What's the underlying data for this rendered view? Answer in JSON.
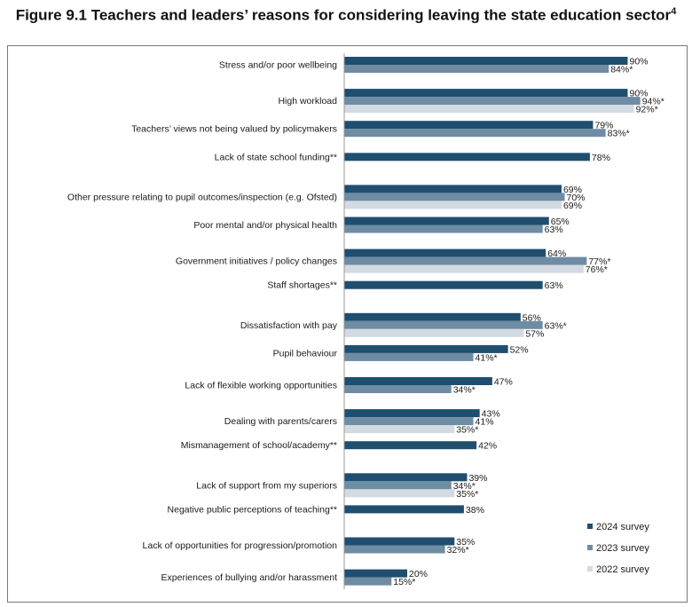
{
  "chart_data": {
    "type": "bar",
    "orientation": "horizontal",
    "title": "Figure 9.1 Teachers and leaders’ reasons for considering leaving the state education sector",
    "title_superscript": "4",
    "categories": [
      "Stress and/or poor wellbeing",
      "High workload",
      "Teachers’ views not being valued by policymakers",
      "Lack of state school funding**",
      "Other pressure relating to pupil outcomes/inspection (e.g.  Ofsted)",
      "Poor mental and/or physical health",
      "Government initiatives / policy changes",
      "Staff shortages**",
      "Dissatisfaction with pay",
      "Pupil behaviour",
      "Lack of flexible working opportunities",
      "Dealing with parents/carers",
      "Mismanagement of school/academy**",
      "Lack of support from my superiors",
      "Negative public perceptions of teaching**",
      "Lack of opportunities for progression/promotion",
      "Experiences of bullying and/or harassment"
    ],
    "series": [
      {
        "name": "2024 survey",
        "color": "#1f4e6f",
        "values": [
          90,
          90,
          79,
          78,
          69,
          65,
          64,
          63,
          56,
          52,
          47,
          43,
          42,
          39,
          38,
          35,
          20
        ],
        "labels": [
          "90%",
          "90%",
          "79%",
          "78%",
          "69%",
          "65%",
          "64%",
          "63%",
          "56%",
          "52%",
          "47%",
          "43%",
          "42%",
          "39%",
          "38%",
          "35%",
          "20%"
        ]
      },
      {
        "name": "2023 survey",
        "color": "#6e8ca3",
        "values": [
          84,
          94,
          83,
          null,
          70,
          63,
          77,
          null,
          63,
          41,
          34,
          41,
          null,
          34,
          null,
          32,
          15
        ],
        "labels": [
          "84%*",
          "94%*",
          "83%*",
          null,
          "70%",
          "63%",
          "77%*",
          null,
          "63%*",
          "41%*",
          "34%*",
          "41%",
          null,
          "34%*",
          null,
          "32%*",
          "15%*"
        ]
      },
      {
        "name": "2022 survey",
        "color": "#d3dae1",
        "values": [
          null,
          92,
          null,
          null,
          69,
          null,
          76,
          null,
          57,
          null,
          null,
          35,
          null,
          35,
          null,
          null,
          null
        ],
        "labels": [
          null,
          "92%*",
          null,
          null,
          "69%",
          null,
          "76%*",
          null,
          "57%",
          null,
          null,
          "35%*",
          null,
          "35%*",
          null,
          null,
          null
        ]
      }
    ],
    "xlim": [
      0,
      100
    ],
    "grid": false,
    "legend_position": "bottom-right"
  }
}
